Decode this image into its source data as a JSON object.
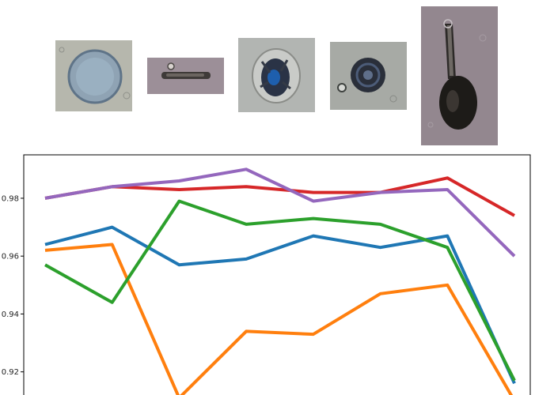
{
  "colors": {
    "blue": "#1f77b4",
    "orange": "#ff7f0e",
    "green": "#2ca02c",
    "red": "#d62728",
    "purple": "#9467bd"
  },
  "images": [
    {
      "name": "round-bluish-cell"
    },
    {
      "name": "elongated-dark-rod"
    },
    {
      "name": "dark-blue-spiky-cell"
    },
    {
      "name": "dark-ring-cell"
    },
    {
      "name": "stalked-dark-cell"
    }
  ],
  "chart_data": {
    "type": "line",
    "title": "",
    "xlabel": "",
    "ylabel": "",
    "x": [
      0,
      1,
      2,
      3,
      4,
      5,
      6,
      7
    ],
    "ylim": [
      0.912,
      0.995
    ],
    "yticks": [
      0.92,
      0.94,
      0.96,
      0.98
    ],
    "ytick_labels": [
      "0.92",
      "0.94",
      "0.96",
      "0.98"
    ],
    "grid": false,
    "series": [
      {
        "color": "#1f77b4",
        "values": [
          0.964,
          0.97,
          0.957,
          0.959,
          0.967,
          0.963,
          0.967,
          0.916
        ]
      },
      {
        "color": "#ff7f0e",
        "values": [
          0.962,
          0.964,
          0.911,
          0.934,
          0.933,
          0.947,
          0.95,
          0.91
        ]
      },
      {
        "color": "#2ca02c",
        "values": [
          0.957,
          0.944,
          0.979,
          0.971,
          0.973,
          0.971,
          0.963,
          0.917
        ]
      },
      {
        "color": "#d62728",
        "values": [
          0.98,
          0.984,
          0.983,
          0.984,
          0.982,
          0.982,
          0.987,
          0.974
        ]
      },
      {
        "color": "#9467bd",
        "values": [
          0.98,
          0.984,
          0.986,
          0.99,
          0.979,
          0.982,
          0.983,
          0.96
        ]
      }
    ]
  }
}
